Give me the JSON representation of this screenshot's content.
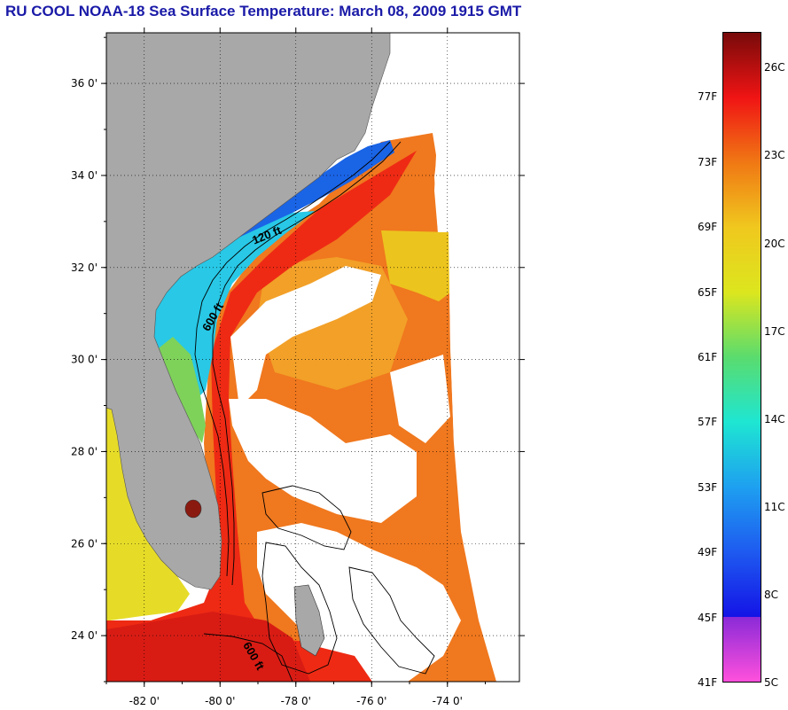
{
  "title": "RU COOL  NOAA-18  Sea Surface Temperature:  March 08, 2009 1915 GMT",
  "map": {
    "lon_range": [
      -83,
      -72.1
    ],
    "lat_range": [
      23,
      37.1
    ],
    "lat_ticks": [
      {
        "value": 36,
        "label": "36 0'"
      },
      {
        "value": 34,
        "label": "34 0'"
      },
      {
        "value": 32,
        "label": "32 0'"
      },
      {
        "value": 30,
        "label": "30 0'"
      },
      {
        "value": 28,
        "label": "28 0'"
      },
      {
        "value": 26,
        "label": "26 0'"
      },
      {
        "value": 24,
        "label": "24 0'"
      }
    ],
    "lon_ticks": [
      {
        "value": -82,
        "label": "-82 0'"
      },
      {
        "value": -80,
        "label": "-80 0'"
      },
      {
        "value": -78,
        "label": "-78 0'"
      },
      {
        "value": -76,
        "label": "-76 0'"
      },
      {
        "value": -74,
        "label": "-74 0'"
      }
    ],
    "contour_labels": [
      {
        "text": "120 ft",
        "lon": -79.1,
        "lat": 32.5
      },
      {
        "text": "600 ft",
        "lon": -80.3,
        "lat": 30.6
      },
      {
        "text": "600 ft",
        "lon": -79.4,
        "lat": 23.8
      }
    ],
    "colors": {
      "land": "#a8a8a8",
      "cloud": "#ffffff",
      "gulf_stream": "#ee2a14",
      "warm_orange": "#f0781e",
      "mid_yellow": "#ecd21e",
      "shelf_cyan": "#28c8e6",
      "shelf_blue": "#1446e6"
    }
  },
  "colorbar": {
    "temp_range_f": [
      41,
      81
    ],
    "fahrenheit_labels": [
      "77F",
      "73F",
      "69F",
      "65F",
      "61F",
      "57F",
      "53F",
      "49F",
      "45F",
      "41F"
    ],
    "celsius_labels": [
      "26C",
      "23C",
      "20C",
      "17C",
      "14C",
      "11C",
      "8C",
      "5C"
    ],
    "stops": [
      {
        "f": 41,
        "color": "#ff50dc"
      },
      {
        "f": 45,
        "color": "#8a2ad8"
      },
      {
        "f": 45,
        "color": "#1414e6"
      },
      {
        "f": 49,
        "color": "#1e5af0"
      },
      {
        "f": 53,
        "color": "#1ea0f0"
      },
      {
        "f": 57,
        "color": "#1ee6d2"
      },
      {
        "f": 61,
        "color": "#5adc6e"
      },
      {
        "f": 65,
        "color": "#dce61e"
      },
      {
        "f": 69,
        "color": "#f0c81e"
      },
      {
        "f": 73,
        "color": "#f07814"
      },
      {
        "f": 77,
        "color": "#f01414"
      },
      {
        "f": 81,
        "color": "#780a0a"
      }
    ]
  }
}
